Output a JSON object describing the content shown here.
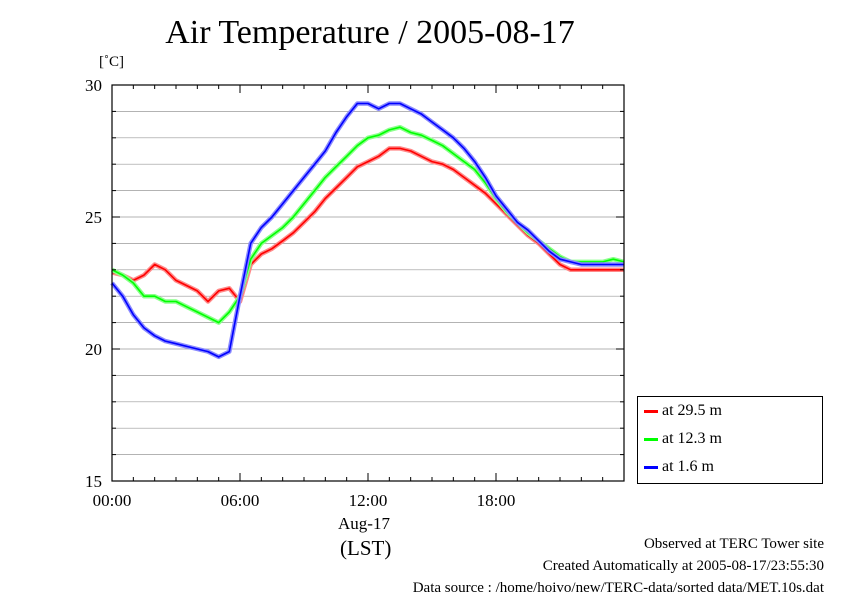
{
  "title": "Air Temperature / 2005-08-17",
  "unit_label": "[˚C]",
  "footer": {
    "line1": "Observed at TERC Tower site",
    "line2": "Created Automatically at 2005-08-17/23:55:30",
    "line3": "Data source : /home/hoivo/new/TERC-data/sorted  data/MET.10s.dat"
  },
  "chart_data": {
    "type": "line",
    "title": "Air Temperature / 2005-08-17",
    "ylabel": "[˚C]",
    "xlabel": "(LST)",
    "x_date_label": "Aug-17",
    "ylim": [
      15,
      30
    ],
    "xlim_hours": [
      0,
      24
    ],
    "grid": true,
    "legend_position": "bottom-right, outside plot",
    "y_ticks": [
      "15",
      "20",
      "25",
      "30"
    ],
    "x_ticks": [
      "00:00",
      "06:00",
      "12:00",
      "18:00"
    ],
    "series": [
      {
        "name": "at 29.5 m",
        "color": "#ff0000",
        "x": [
          0,
          0.5,
          1,
          1.5,
          2,
          2.5,
          3,
          3.5,
          4,
          4.5,
          5,
          5.5,
          6,
          6.5,
          7,
          7.5,
          8,
          8.5,
          9,
          9.5,
          10,
          10.5,
          11,
          11.5,
          12,
          12.5,
          13,
          13.5,
          14,
          14.5,
          15,
          15.5,
          16,
          16.5,
          17,
          17.5,
          18,
          18.5,
          19,
          19.5,
          20,
          20.5,
          21,
          21.5,
          22,
          22.5,
          23,
          23.5,
          24
        ],
        "y": [
          22.9,
          22.8,
          22.6,
          22.8,
          23.2,
          23.0,
          22.6,
          22.4,
          22.2,
          21.8,
          22.2,
          22.3,
          21.8,
          23.2,
          23.6,
          23.8,
          24.1,
          24.4,
          24.8,
          25.2,
          25.7,
          26.1,
          26.5,
          26.9,
          27.1,
          27.3,
          27.6,
          27.6,
          27.5,
          27.3,
          27.1,
          27.0,
          26.8,
          26.5,
          26.2,
          25.9,
          25.5,
          25.1,
          24.7,
          24.3,
          24.0,
          23.6,
          23.2,
          23.0,
          23.0,
          23.0,
          23.0,
          23.0,
          23.0
        ]
      },
      {
        "name": "at 12.3 m",
        "color": "#00ff00",
        "x": [
          0,
          0.5,
          1,
          1.5,
          2,
          2.5,
          3,
          3.5,
          4,
          4.5,
          5,
          5.5,
          6,
          6.5,
          7,
          7.5,
          8,
          8.5,
          9,
          9.5,
          10,
          10.5,
          11,
          11.5,
          12,
          12.5,
          13,
          13.5,
          14,
          14.5,
          15,
          15.5,
          16,
          16.5,
          17,
          17.5,
          18,
          18.5,
          19,
          19.5,
          20,
          20.5,
          21,
          21.5,
          22,
          22.5,
          23,
          23.5,
          24
        ],
        "y": [
          23.0,
          22.8,
          22.5,
          22.0,
          22.0,
          21.8,
          21.8,
          21.6,
          21.4,
          21.2,
          21.0,
          21.4,
          22.0,
          23.4,
          24.0,
          24.3,
          24.6,
          25.0,
          25.5,
          26.0,
          26.5,
          26.9,
          27.3,
          27.7,
          28.0,
          28.1,
          28.3,
          28.4,
          28.2,
          28.1,
          27.9,
          27.7,
          27.4,
          27.1,
          26.8,
          26.3,
          25.7,
          25.2,
          24.8,
          24.4,
          24.1,
          23.8,
          23.5,
          23.3,
          23.3,
          23.3,
          23.3,
          23.4,
          23.3
        ]
      },
      {
        "name": "at 1.6 m",
        "color": "#0000ff",
        "x": [
          0,
          0.5,
          1,
          1.5,
          2,
          2.5,
          3,
          3.5,
          4,
          4.5,
          5,
          5.5,
          6,
          6.5,
          7,
          7.5,
          8,
          8.5,
          9,
          9.5,
          10,
          10.5,
          11,
          11.5,
          12,
          12.5,
          13,
          13.5,
          14,
          14.5,
          15,
          15.5,
          16,
          16.5,
          17,
          17.5,
          18,
          18.5,
          19,
          19.5,
          20,
          20.5,
          21,
          21.5,
          22,
          22.5,
          23,
          23.5,
          24
        ],
        "y": [
          22.5,
          22.0,
          21.3,
          20.8,
          20.5,
          20.3,
          20.2,
          20.1,
          20.0,
          19.9,
          19.7,
          19.9,
          22.0,
          24.0,
          24.6,
          25.0,
          25.5,
          26.0,
          26.5,
          27.0,
          27.5,
          28.2,
          28.8,
          29.3,
          29.3,
          29.1,
          29.3,
          29.3,
          29.1,
          28.9,
          28.6,
          28.3,
          28.0,
          27.6,
          27.1,
          26.5,
          25.8,
          25.3,
          24.8,
          24.5,
          24.1,
          23.7,
          23.4,
          23.3,
          23.2,
          23.2,
          23.2,
          23.2,
          23.2
        ]
      }
    ]
  }
}
